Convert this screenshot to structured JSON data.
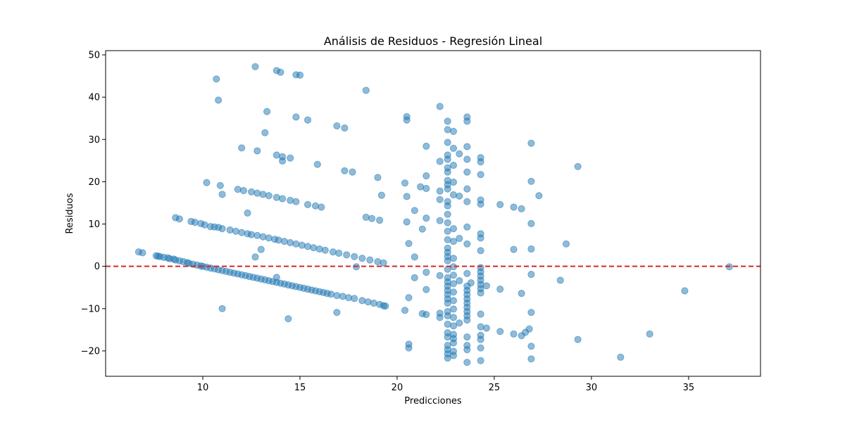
{
  "chart_data": {
    "type": "scatter",
    "title": "Análisis de Residuos - Regresión Lineal",
    "xlabel": "Predicciones",
    "ylabel": "Residuos",
    "xlim": [
      5.0,
      38.7
    ],
    "ylim": [
      -26.0,
      51.0
    ],
    "xticks": [
      10,
      15,
      20,
      25,
      30,
      35
    ],
    "yticks": [
      -20,
      -10,
      0,
      10,
      20,
      30,
      40,
      50
    ],
    "grid": false,
    "reference_line": {
      "y": 0,
      "color": "#d62728",
      "style": "dashed"
    },
    "point_color": "#1f77b4",
    "point_alpha": 0.5,
    "points": [
      [
        6.7,
        3.4
      ],
      [
        6.9,
        3.2
      ],
      [
        7.6,
        2.5
      ],
      [
        7.7,
        2.4
      ],
      [
        7.8,
        2.3
      ],
      [
        8.0,
        2.1
      ],
      [
        8.2,
        2.0
      ],
      [
        8.3,
        1.8
      ],
      [
        8.5,
        1.7
      ],
      [
        8.6,
        1.5
      ],
      [
        8.8,
        1.3
      ],
      [
        9.0,
        1.1
      ],
      [
        9.2,
        0.9
      ],
      [
        9.3,
        0.7
      ],
      [
        9.5,
        0.5
      ],
      [
        9.7,
        0.3
      ],
      [
        9.9,
        0.1
      ],
      [
        10.0,
        0.0
      ],
      [
        10.2,
        -0.2
      ],
      [
        10.4,
        -0.4
      ],
      [
        10.6,
        -0.6
      ],
      [
        10.8,
        -0.8
      ],
      [
        11.0,
        -1.0
      ],
      [
        11.2,
        -1.2
      ],
      [
        11.4,
        -1.4
      ],
      [
        11.6,
        -1.6
      ],
      [
        11.8,
        -1.8
      ],
      [
        12.0,
        -2.0
      ],
      [
        12.2,
        -2.2
      ],
      [
        12.4,
        -2.4
      ],
      [
        12.6,
        -2.6
      ],
      [
        12.8,
        -2.8
      ],
      [
        13.0,
        -3.0
      ],
      [
        13.2,
        -3.2
      ],
      [
        13.4,
        -3.4
      ],
      [
        13.6,
        -3.6
      ],
      [
        13.8,
        -3.8
      ],
      [
        14.0,
        -4.0
      ],
      [
        14.2,
        -4.2
      ],
      [
        14.4,
        -4.4
      ],
      [
        14.6,
        -4.6
      ],
      [
        14.8,
        -4.8
      ],
      [
        15.0,
        -5.0
      ],
      [
        15.2,
        -5.2
      ],
      [
        15.4,
        -5.4
      ],
      [
        15.6,
        -5.6
      ],
      [
        15.8,
        -5.8
      ],
      [
        16.0,
        -6.0
      ],
      [
        16.2,
        -6.2
      ],
      [
        16.4,
        -6.4
      ],
      [
        16.6,
        -6.6
      ],
      [
        16.9,
        -6.9
      ],
      [
        17.2,
        -7.1
      ],
      [
        17.5,
        -7.4
      ],
      [
        17.8,
        -7.6
      ],
      [
        18.2,
        -8.1
      ],
      [
        18.5,
        -8.4
      ],
      [
        18.8,
        -8.7
      ],
      [
        19.1,
        -9.0
      ],
      [
        19.3,
        -9.3
      ],
      [
        19.4,
        -9.4
      ],
      [
        8.6,
        11.5
      ],
      [
        8.8,
        11.2
      ],
      [
        9.4,
        10.6
      ],
      [
        9.6,
        10.4
      ],
      [
        9.9,
        10.1
      ],
      [
        10.1,
        9.8
      ],
      [
        10.4,
        9.4
      ],
      [
        10.6,
        9.3
      ],
      [
        10.8,
        9.2
      ],
      [
        11.0,
        8.9
      ],
      [
        11.4,
        8.6
      ],
      [
        11.7,
        8.3
      ],
      [
        12.0,
        8.0
      ],
      [
        12.3,
        7.7
      ],
      [
        12.5,
        7.5
      ],
      [
        12.8,
        7.3
      ],
      [
        13.1,
        7.0
      ],
      [
        13.4,
        6.7
      ],
      [
        13.7,
        6.4
      ],
      [
        13.9,
        6.2
      ],
      [
        14.2,
        5.9
      ],
      [
        14.5,
        5.6
      ],
      [
        14.8,
        5.3
      ],
      [
        15.1,
        5.0
      ],
      [
        15.4,
        4.7
      ],
      [
        15.7,
        4.4
      ],
      [
        16.0,
        4.1
      ],
      [
        16.3,
        3.8
      ],
      [
        16.7,
        3.4
      ],
      [
        17.0,
        3.1
      ],
      [
        17.4,
        2.7
      ],
      [
        17.8,
        2.3
      ],
      [
        18.2,
        1.9
      ],
      [
        18.6,
        1.5
      ],
      [
        19.0,
        1.1
      ],
      [
        19.3,
        0.8
      ],
      [
        11.8,
        18.2
      ],
      [
        12.1,
        17.9
      ],
      [
        12.5,
        17.6
      ],
      [
        12.8,
        17.3
      ],
      [
        13.1,
        17.0
      ],
      [
        13.4,
        16.7
      ],
      [
        13.8,
        16.3
      ],
      [
        14.1,
        16.0
      ],
      [
        14.5,
        15.6
      ],
      [
        14.8,
        15.3
      ],
      [
        15.4,
        14.6
      ],
      [
        15.8,
        14.3
      ],
      [
        16.1,
        14.0
      ],
      [
        10.2,
        19.8
      ],
      [
        10.9,
        19.1
      ],
      [
        11.0,
        17.0
      ],
      [
        12.3,
        12.6
      ],
      [
        12.7,
        2.2
      ],
      [
        13.0,
        4.0
      ],
      [
        13.8,
        -2.6
      ],
      [
        11.0,
        -10.0
      ],
      [
        14.4,
        -12.4
      ],
      [
        16.9,
        -10.9
      ],
      [
        17.9,
        -0.1
      ],
      [
        17.3,
        22.6
      ],
      [
        17.7,
        22.3
      ],
      [
        18.4,
        11.6
      ],
      [
        18.7,
        11.3
      ],
      [
        19.0,
        21.0
      ],
      [
        19.1,
        10.9
      ],
      [
        19.2,
        16.8
      ],
      [
        12.0,
        28.0
      ],
      [
        12.8,
        27.3
      ],
      [
        13.2,
        31.6
      ],
      [
        13.8,
        26.3
      ],
      [
        14.1,
        25.9
      ],
      [
        14.1,
        24.9
      ],
      [
        14.5,
        25.6
      ],
      [
        15.9,
        24.1
      ],
      [
        13.3,
        36.6
      ],
      [
        14.8,
        35.3
      ],
      [
        15.4,
        34.6
      ],
      [
        16.9,
        33.2
      ],
      [
        17.3,
        32.7
      ],
      [
        10.7,
        44.3
      ],
      [
        10.8,
        39.3
      ],
      [
        12.7,
        47.2
      ],
      [
        13.8,
        46.3
      ],
      [
        14.0,
        45.9
      ],
      [
        14.8,
        45.3
      ],
      [
        15.0,
        45.2
      ],
      [
        18.4,
        41.6
      ],
      [
        20.4,
        19.7
      ],
      [
        20.5,
        16.5
      ],
      [
        20.5,
        10.5
      ],
      [
        20.6,
        5.4
      ],
      [
        20.5,
        34.6
      ],
      [
        20.5,
        35.4
      ],
      [
        20.6,
        -7.4
      ],
      [
        20.4,
        -10.4
      ],
      [
        20.6,
        -18.4
      ],
      [
        20.6,
        -19.3
      ],
      [
        20.9,
        13.2
      ],
      [
        20.9,
        2.2
      ],
      [
        20.9,
        -2.7
      ],
      [
        21.2,
        18.8
      ],
      [
        21.3,
        8.8
      ],
      [
        21.3,
        -11.2
      ],
      [
        21.5,
        28.4
      ],
      [
        21.5,
        21.4
      ],
      [
        21.5,
        18.4
      ],
      [
        21.5,
        11.4
      ],
      [
        21.5,
        -1.4
      ],
      [
        21.5,
        -5.5
      ],
      [
        21.5,
        -11.4
      ],
      [
        22.2,
        24.8
      ],
      [
        22.2,
        17.8
      ],
      [
        22.2,
        15.8
      ],
      [
        22.2,
        10.8
      ],
      [
        22.2,
        -2.2
      ],
      [
        22.2,
        -11.1
      ],
      [
        22.2,
        -12.1
      ],
      [
        22.2,
        37.8
      ],
      [
        22.6,
        34.3
      ],
      [
        22.6,
        32.3
      ],
      [
        22.6,
        29.3
      ],
      [
        22.6,
        26.3
      ],
      [
        22.6,
        25.3
      ],
      [
        22.6,
        23.3
      ],
      [
        22.6,
        22.3
      ],
      [
        22.6,
        20.3
      ],
      [
        22.6,
        19.3
      ],
      [
        22.6,
        18.3
      ],
      [
        22.6,
        15.3
      ],
      [
        22.6,
        14.3
      ],
      [
        22.6,
        12.3
      ],
      [
        22.6,
        10.3
      ],
      [
        22.6,
        8.3
      ],
      [
        22.6,
        6.3
      ],
      [
        22.6,
        4.3
      ],
      [
        22.6,
        3.3
      ],
      [
        22.6,
        2.3
      ],
      [
        22.6,
        1.3
      ],
      [
        22.6,
        -0.7
      ],
      [
        22.6,
        -2.7
      ],
      [
        22.6,
        -3.7
      ],
      [
        22.6,
        -4.7
      ],
      [
        22.6,
        -5.7
      ],
      [
        22.6,
        -6.7
      ],
      [
        22.6,
        -7.7
      ],
      [
        22.6,
        -8.7
      ],
      [
        22.6,
        -10.7
      ],
      [
        22.6,
        -11.7
      ],
      [
        22.6,
        -13.7
      ],
      [
        22.6,
        -15.7
      ],
      [
        22.6,
        -16.7
      ],
      [
        22.6,
        -18.7
      ],
      [
        22.6,
        -19.7
      ],
      [
        22.6,
        -20.7
      ],
      [
        22.6,
        -21.7
      ],
      [
        22.9,
        31.9
      ],
      [
        22.9,
        27.9
      ],
      [
        22.9,
        23.9
      ],
      [
        22.9,
        19.9
      ],
      [
        22.9,
        16.9
      ],
      [
        22.9,
        8.9
      ],
      [
        22.9,
        5.9
      ],
      [
        22.9,
        1.9
      ],
      [
        22.9,
        -0.1
      ],
      [
        22.9,
        -2.1
      ],
      [
        22.9,
        -4.1
      ],
      [
        22.9,
        -6.1
      ],
      [
        22.9,
        -8.1
      ],
      [
        22.9,
        -10.1
      ],
      [
        22.9,
        -12.1
      ],
      [
        22.9,
        -14.1
      ],
      [
        22.9,
        -16.1
      ],
      [
        22.9,
        -17.1
      ],
      [
        22.9,
        -18.1
      ],
      [
        22.9,
        -20.1
      ],
      [
        22.9,
        -21.1
      ],
      [
        23.2,
        26.6
      ],
      [
        23.2,
        16.6
      ],
      [
        23.2,
        6.6
      ],
      [
        23.2,
        -3.4
      ],
      [
        23.2,
        -13.4
      ],
      [
        23.6,
        35.3
      ],
      [
        23.6,
        34.3
      ],
      [
        23.6,
        28.3
      ],
      [
        23.6,
        25.3
      ],
      [
        23.6,
        22.3
      ],
      [
        23.6,
        18.3
      ],
      [
        23.6,
        15.3
      ],
      [
        23.6,
        9.3
      ],
      [
        23.6,
        5.3
      ],
      [
        23.6,
        -1.7
      ],
      [
        23.6,
        -4.7
      ],
      [
        23.6,
        -5.7
      ],
      [
        23.6,
        -6.7
      ],
      [
        23.6,
        -7.7
      ],
      [
        23.6,
        -8.7
      ],
      [
        23.6,
        -9.7
      ],
      [
        23.6,
        -10.7
      ],
      [
        23.6,
        -11.7
      ],
      [
        23.6,
        -12.7
      ],
      [
        23.6,
        -16.7
      ],
      [
        23.6,
        -18.7
      ],
      [
        23.6,
        -19.7
      ],
      [
        23.6,
        -22.7
      ],
      [
        23.8,
        -3.9
      ],
      [
        24.3,
        25.7
      ],
      [
        24.3,
        24.7
      ],
      [
        24.3,
        21.7
      ],
      [
        24.3,
        15.7
      ],
      [
        24.3,
        14.7
      ],
      [
        24.3,
        7.7
      ],
      [
        24.3,
        6.7
      ],
      [
        24.3,
        3.7
      ],
      [
        24.3,
        -0.3
      ],
      [
        24.3,
        -1.3
      ],
      [
        24.3,
        -2.3
      ],
      [
        24.3,
        -3.3
      ],
      [
        24.3,
        -4.3
      ],
      [
        24.3,
        -5.3
      ],
      [
        24.3,
        -6.3
      ],
      [
        24.3,
        -11.3
      ],
      [
        24.3,
        -14.3
      ],
      [
        24.3,
        -16.3
      ],
      [
        24.3,
        -17.3
      ],
      [
        24.3,
        -19.3
      ],
      [
        24.3,
        -22.3
      ],
      [
        24.6,
        -14.6
      ],
      [
        24.6,
        -4.6
      ],
      [
        25.3,
        14.6
      ],
      [
        25.3,
        -5.4
      ],
      [
        25.3,
        -15.4
      ],
      [
        26.0,
        14.0
      ],
      [
        26.0,
        4.0
      ],
      [
        26.0,
        -16.0
      ],
      [
        26.4,
        13.6
      ],
      [
        26.4,
        -6.4
      ],
      [
        26.4,
        -16.4
      ],
      [
        26.6,
        -15.6
      ],
      [
        26.8,
        -14.8
      ],
      [
        26.9,
        29.1
      ],
      [
        26.9,
        20.1
      ],
      [
        26.9,
        10.1
      ],
      [
        26.9,
        4.1
      ],
      [
        26.9,
        -1.9
      ],
      [
        26.9,
        -10.9
      ],
      [
        26.9,
        -18.9
      ],
      [
        26.9,
        -21.9
      ],
      [
        27.3,
        16.7
      ],
      [
        28.4,
        -3.3
      ],
      [
        28.7,
        5.3
      ],
      [
        29.3,
        23.6
      ],
      [
        29.3,
        -17.3
      ],
      [
        31.5,
        -21.5
      ],
      [
        33.0,
        -16.0
      ],
      [
        34.8,
        -5.8
      ],
      [
        37.1,
        -0.1
      ]
    ]
  }
}
